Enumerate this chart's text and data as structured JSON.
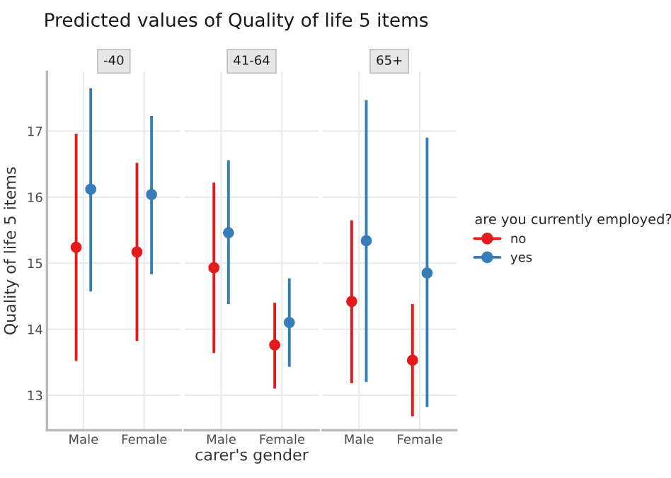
{
  "chart_data": [
    {
      "type": "scatter",
      "title": "Predicted values of Quality of life 5 items",
      "subtitle": "-40",
      "categories": [
        "Male",
        "Female"
      ],
      "ylim": [
        12.47,
        17.9
      ],
      "yticks": [
        13,
        14,
        15,
        16,
        17
      ],
      "ylabel": "Quality of life 5 items",
      "grid": true,
      "marker": "circle",
      "legend": "right",
      "legend_title": "are you currently employed?",
      "series": [
        {
          "name": "no",
          "color": "#e41a1c",
          "values": [
            15.24,
            15.17
          ],
          "errors": [
            [
              13.52,
              16.96
            ],
            [
              13.82,
              16.52
            ]
          ]
        },
        {
          "name": "yes",
          "color": "#377eb8",
          "values": [
            16.12,
            16.04
          ],
          "errors": [
            [
              14.57,
              17.65
            ],
            [
              14.83,
              17.23
            ]
          ]
        }
      ]
    },
    {
      "type": "scatter",
      "subtitle": "41-64",
      "categories": [
        "Male",
        "Female"
      ],
      "ylim": [
        12.47,
        17.9
      ],
      "yticks": [
        13,
        14,
        15,
        16,
        17
      ],
      "xlabel": "carer's gender",
      "grid": true,
      "marker": "circle",
      "tick_labels": "x",
      "legend": "right",
      "series": [
        {
          "name": "no",
          "color": "#e41a1c",
          "values": [
            14.93,
            13.76
          ],
          "errors": [
            [
              13.64,
              16.22
            ],
            [
              13.1,
              14.4
            ]
          ]
        },
        {
          "name": "yes",
          "color": "#377eb8",
          "values": [
            15.46,
            14.1
          ],
          "errors": [
            [
              14.38,
              16.56
            ],
            [
              13.43,
              14.77
            ]
          ]
        }
      ]
    },
    {
      "type": "scatter",
      "subtitle": "65+",
      "categories": [
        "Male",
        "Female"
      ],
      "ylim": [
        12.47,
        17.9
      ],
      "yticks": [
        13,
        14,
        15,
        16,
        17
      ],
      "grid": true,
      "marker": "circle",
      "tick_labels": "x",
      "legend": "right",
      "series": [
        {
          "name": "no",
          "color": "#e41a1c",
          "values": [
            14.42,
            13.53
          ],
          "errors": [
            [
              13.18,
              15.65
            ],
            [
              12.68,
              14.38
            ]
          ]
        },
        {
          "name": "yes",
          "color": "#377eb8",
          "values": [
            15.34,
            14.85
          ],
          "errors": [
            [
              13.2,
              17.47
            ],
            [
              12.82,
              16.9
            ]
          ]
        }
      ]
    }
  ]
}
